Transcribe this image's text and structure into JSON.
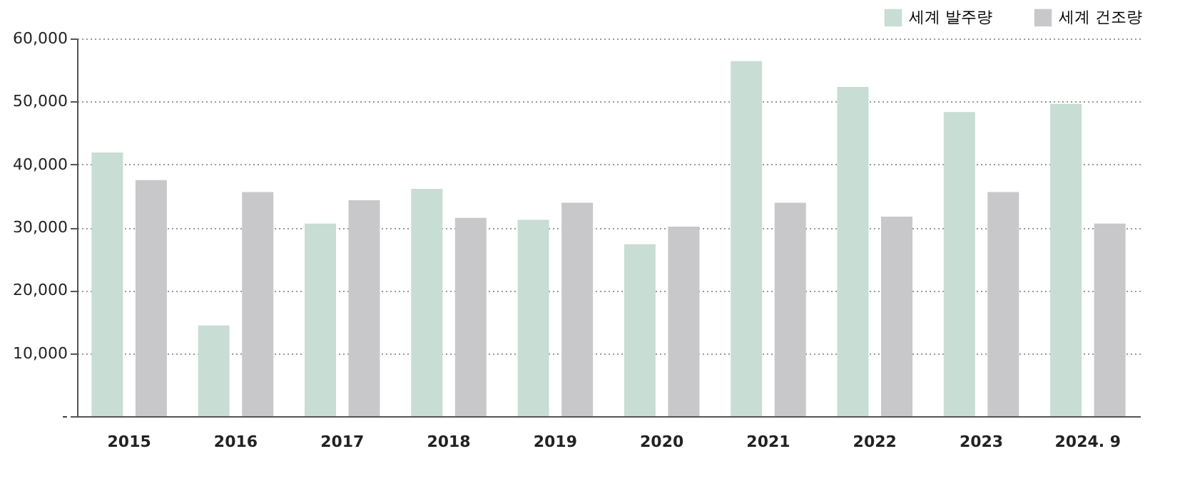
{
  "chart_data": {
    "type": "bar",
    "categories": [
      "2015",
      "2016",
      "2017",
      "2018",
      "2019",
      "2020",
      "2021",
      "2022",
      "2023",
      "2024. 9"
    ],
    "series": [
      {
        "name": "세계 발주량",
        "color": "#c8ddd4",
        "values": [
          41900,
          14400,
          30600,
          36100,
          31200,
          27300,
          56400,
          52300,
          48300,
          49600
        ]
      },
      {
        "name": "세계 건조량",
        "color": "#c8c8ca",
        "values": [
          37500,
          35600,
          34300,
          31500,
          33900,
          30100,
          33900,
          31700,
          35600,
          30600
        ]
      }
    ],
    "ylim": [
      0,
      60000
    ],
    "yticks": [
      {
        "value": 0,
        "label": "-"
      },
      {
        "value": 10000,
        "label": "10,000"
      },
      {
        "value": 20000,
        "label": "20,000"
      },
      {
        "value": 30000,
        "label": "30,000"
      },
      {
        "value": 40000,
        "label": "40,000"
      },
      {
        "value": 50000,
        "label": "50,000"
      },
      {
        "value": 60000,
        "label": "60,000"
      }
    ],
    "grid": "y",
    "legend": "top right"
  }
}
